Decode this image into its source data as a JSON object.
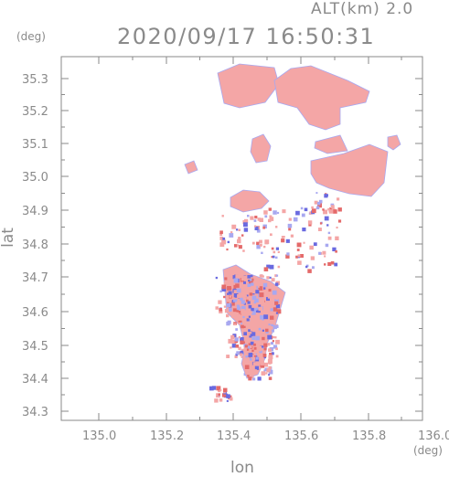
{
  "header": {
    "altitude": "ALT(km) 2.0",
    "timestamp": "2020/09/17 16:50:31"
  },
  "axes": {
    "lat_unit": "(deg)",
    "lon_unit": "(deg)",
    "lat_label": "lat",
    "lon_label": "lon",
    "lat_ticks": [
      "35.3",
      "35.2",
      "35.1",
      "35.0",
      "34.9",
      "34.8",
      "34.7",
      "34.6",
      "34.5",
      "34.4",
      "34.3"
    ],
    "lon_ticks": [
      "135.0",
      "135.2",
      "135.4",
      "135.6",
      "135.8",
      "136.0"
    ]
  },
  "colors": {
    "frame": "#8a8a8a",
    "positive": "#f4a6a6",
    "positive_strong": "#e46a6a",
    "negative": "#a8a8f0",
    "negative_strong": "#6a6ae0"
  }
}
